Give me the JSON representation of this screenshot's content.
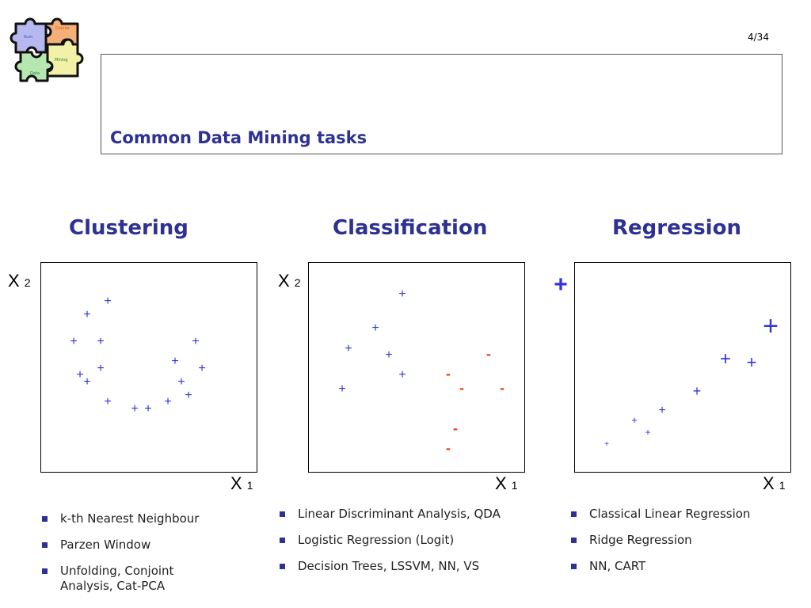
{
  "page": {
    "number": "4/34"
  },
  "logo": {
    "pieces": [
      "Sum",
      "Course",
      "Mining",
      "Data"
    ]
  },
  "slide": {
    "title": "Common Data Mining tasks"
  },
  "colors": {
    "accent": "#2e3192",
    "plus": "#3333dd",
    "minus": "#e8401c"
  },
  "clustering": {
    "heading": "Clustering",
    "x_label": "X",
    "x_sub": "1",
    "y_label": "X",
    "y_sub": "2",
    "bullets": [
      "k-th Nearest Neighbour",
      "Parzen Window",
      "Unfolding, Conjoint Analysis, Cat-PCA"
    ]
  },
  "classification": {
    "heading": "Classification",
    "x_label": "X",
    "x_sub": "1",
    "y_label": "X",
    "y_sub": "2",
    "bullets": [
      "Linear Discriminant Analysis, QDA",
      "Logistic Regression (Logit)",
      "Decision Trees, LSSVM, NN, VS"
    ]
  },
  "regression": {
    "heading": "Regression",
    "x_label": "X",
    "x_sub": "1",
    "bullets": [
      "Classical Linear Regression",
      "Ridge Regression",
      "NN, CART"
    ]
  }
}
